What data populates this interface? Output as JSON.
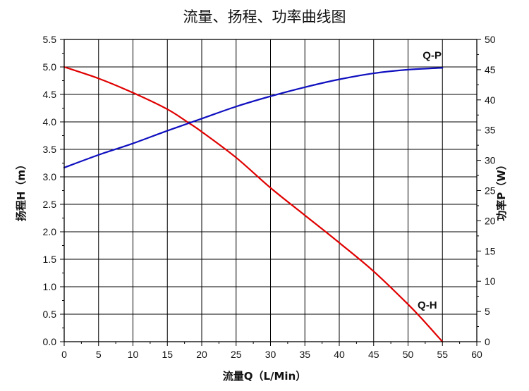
{
  "chart_data": {
    "type": "line",
    "title": "流量、扬程、功率曲线图",
    "xlabel": "流量Q（L/Min）",
    "ylabel_left": "扬程H（m）",
    "ylabel_right": "功率P（W）",
    "xlim": [
      0,
      60
    ],
    "ylim_left": [
      0,
      5.5
    ],
    "ylim_right": [
      0,
      50
    ],
    "x_ticks": [
      "0",
      "5",
      "10",
      "15",
      "20",
      "25",
      "30",
      "35",
      "40",
      "45",
      "50",
      "55",
      "60"
    ],
    "y_left_ticks": [
      "0.0",
      "0.5",
      "1.0",
      "1.5",
      "2.0",
      "2.5",
      "3.0",
      "3.5",
      "4.0",
      "4.5",
      "5.0",
      "5.5"
    ],
    "y_right_ticks": [
      "0",
      "5",
      "10",
      "15",
      "20",
      "25",
      "30",
      "35",
      "40",
      "45",
      "50"
    ],
    "grid": true,
    "series": [
      {
        "name": "Q-H",
        "axis": "left",
        "color": "#e00000",
        "x": [
          0,
          5,
          10,
          15,
          18,
          20,
          25,
          30,
          35,
          40,
          45,
          50,
          52.5,
          55
        ],
        "y": [
          5.0,
          4.79,
          4.53,
          4.23,
          3.99,
          3.82,
          3.35,
          2.8,
          2.3,
          1.8,
          1.28,
          0.68,
          0.35,
          0.0
        ]
      },
      {
        "name": "Q-P",
        "axis": "right",
        "color": "#1010c0",
        "x": [
          0,
          5,
          10,
          15,
          20,
          25,
          30,
          35,
          40,
          45,
          50,
          55
        ],
        "y": [
          28.8,
          30.9,
          32.8,
          34.9,
          36.9,
          38.9,
          40.6,
          42.1,
          43.4,
          44.4,
          45.0,
          45.3
        ]
      }
    ]
  }
}
